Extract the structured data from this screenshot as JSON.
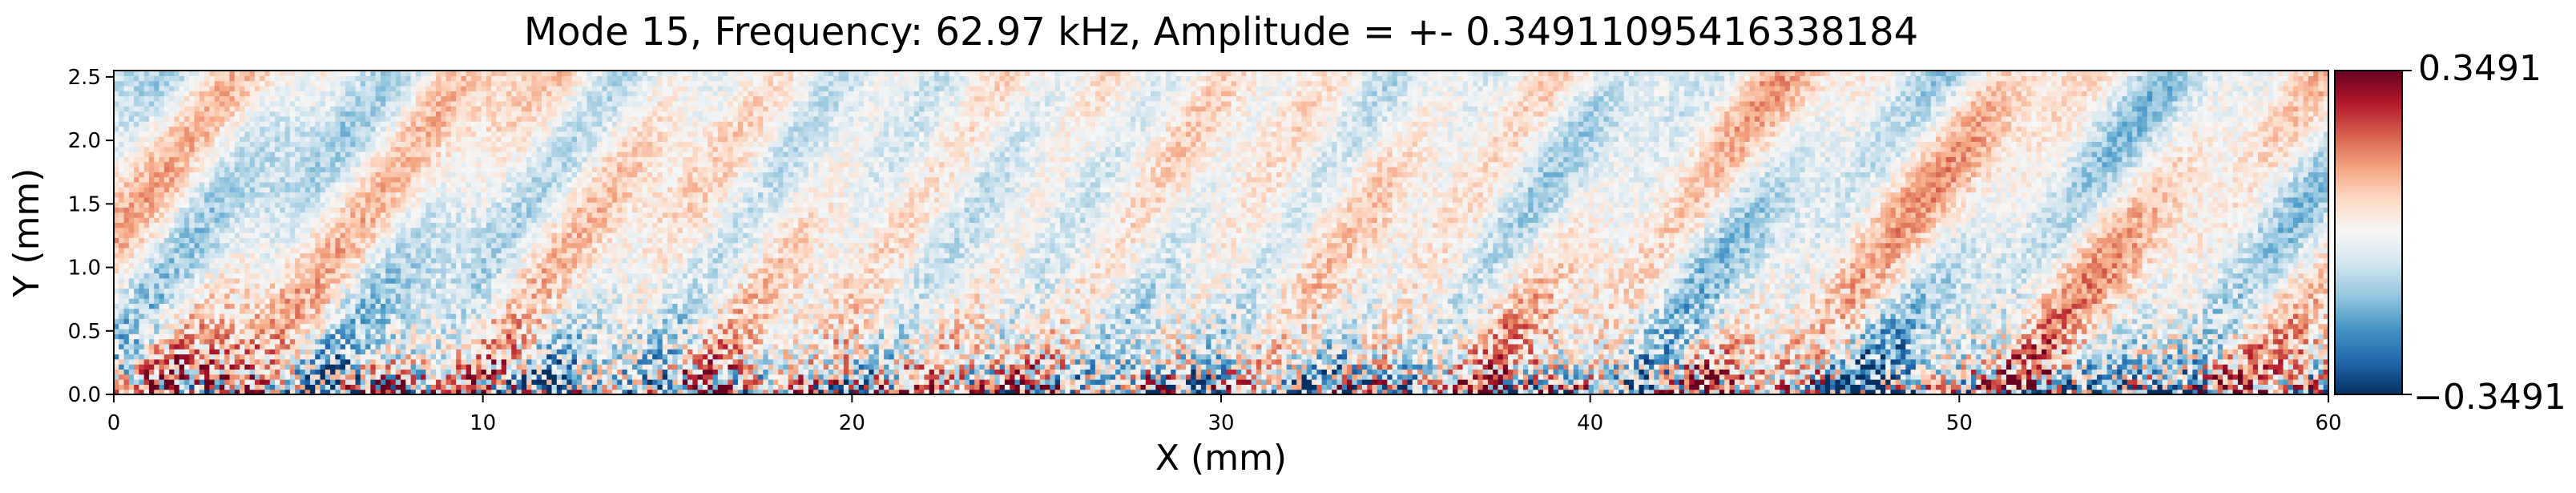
{
  "chart_data": {
    "type": "heatmap",
    "title": "Mode 15, Frequency: 62.97 kHz, Amplitude = +- 0.34911095416338184",
    "xlabel": "X (mm)",
    "ylabel": "Y (mm)",
    "xlim": [
      0,
      60
    ],
    "ylim": [
      0,
      2.55
    ],
    "xticks": [
      0,
      10,
      20,
      30,
      40,
      50,
      60
    ],
    "xtick_labels": [
      "0",
      "10",
      "20",
      "30",
      "40",
      "50",
      "60"
    ],
    "yticks": [
      0.0,
      0.5,
      1.0,
      1.5,
      2.0,
      2.5
    ],
    "ytick_labels": [
      "0.0",
      "0.5",
      "1.0",
      "1.5",
      "2.0",
      "2.5"
    ],
    "colormap": "RdBu_r",
    "vmin": -0.3491,
    "vmax": 0.3491,
    "colorbar_tick_labels": [
      "0.3491",
      "−0.3491"
    ],
    "grid": false,
    "field_description": "Modal amplitude field with oblique streaks rising to the right; fine-scale high-amplitude noise concentrated near Y < 0.6 mm.",
    "streak_slope_mm_per_mm": 0.28,
    "colors": {
      "low": "#053061",
      "mid": "#f7f7f7",
      "high": "#67001f"
    }
  }
}
